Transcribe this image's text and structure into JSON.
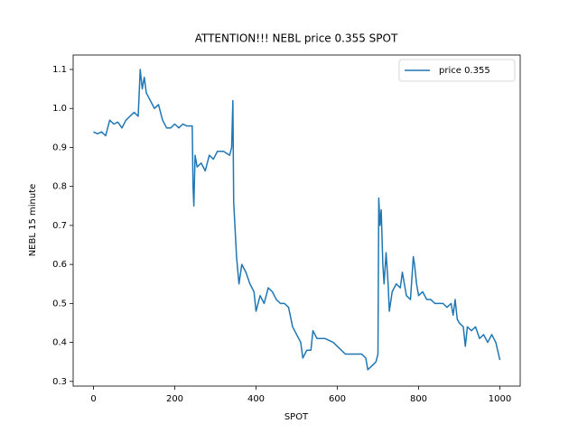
{
  "chart_data": {
    "type": "line",
    "title": "ATTENTION!!! NEBL price 0.355 SPOT",
    "x_label": "SPOT",
    "y_label": "NEBL 15 minute",
    "x": [
      0,
      10,
      20,
      30,
      40,
      50,
      60,
      70,
      80,
      90,
      100,
      110,
      115,
      120,
      125,
      130,
      140,
      150,
      160,
      170,
      180,
      190,
      200,
      210,
      220,
      230,
      243,
      245,
      247,
      250,
      255,
      265,
      275,
      285,
      295,
      305,
      320,
      335,
      340,
      343,
      345,
      348,
      352,
      358,
      365,
      375,
      385,
      395,
      400,
      410,
      420,
      430,
      440,
      450,
      460,
      470,
      480,
      490,
      500,
      510,
      515,
      525,
      535,
      540,
      550,
      570,
      590,
      600,
      610,
      620,
      640,
      660,
      670,
      675,
      685,
      695,
      700,
      702,
      705,
      708,
      712,
      715,
      720,
      725,
      728,
      735,
      745,
      755,
      760,
      770,
      780,
      787,
      790,
      795,
      800,
      810,
      820,
      830,
      840,
      850,
      860,
      870,
      880,
      885,
      890,
      895,
      900,
      910,
      915,
      920,
      930,
      940,
      950,
      960,
      970,
      980,
      990,
      1000
    ],
    "series": [
      {
        "name": "price 0.355",
        "color": "#1f77b4",
        "values": [
          0.94,
          0.935,
          0.94,
          0.93,
          0.97,
          0.96,
          0.965,
          0.95,
          0.97,
          0.98,
          0.99,
          0.98,
          1.1,
          1.05,
          1.08,
          1.04,
          1.02,
          1.0,
          1.01,
          0.97,
          0.95,
          0.95,
          0.96,
          0.95,
          0.96,
          0.955,
          0.955,
          0.8,
          0.75,
          0.88,
          0.85,
          0.86,
          0.84,
          0.88,
          0.87,
          0.89,
          0.89,
          0.88,
          0.9,
          1.02,
          0.76,
          0.7,
          0.62,
          0.55,
          0.6,
          0.58,
          0.55,
          0.53,
          0.48,
          0.52,
          0.5,
          0.54,
          0.53,
          0.51,
          0.5,
          0.5,
          0.49,
          0.44,
          0.42,
          0.4,
          0.36,
          0.38,
          0.38,
          0.43,
          0.41,
          0.41,
          0.4,
          0.39,
          0.38,
          0.37,
          0.37,
          0.37,
          0.36,
          0.33,
          0.34,
          0.35,
          0.37,
          0.77,
          0.7,
          0.74,
          0.6,
          0.55,
          0.63,
          0.55,
          0.48,
          0.53,
          0.55,
          0.54,
          0.58,
          0.52,
          0.51,
          0.62,
          0.6,
          0.55,
          0.52,
          0.53,
          0.51,
          0.51,
          0.5,
          0.5,
          0.5,
          0.49,
          0.5,
          0.47,
          0.51,
          0.46,
          0.45,
          0.44,
          0.39,
          0.44,
          0.43,
          0.44,
          0.41,
          0.42,
          0.4,
          0.42,
          0.4,
          0.355
        ]
      }
    ],
    "xlim": [
      -50,
      1050
    ],
    "ylim": [
      0.288,
      1.137
    ],
    "xticks": [
      0,
      200,
      400,
      600,
      800,
      1000
    ],
    "yticks": [
      0.3,
      0.4,
      0.5,
      0.6,
      0.7,
      0.8,
      0.9,
      {
        "value": 1.0,
        "label": "1.0"
      },
      1.1
    ],
    "legend": "upper right"
  }
}
